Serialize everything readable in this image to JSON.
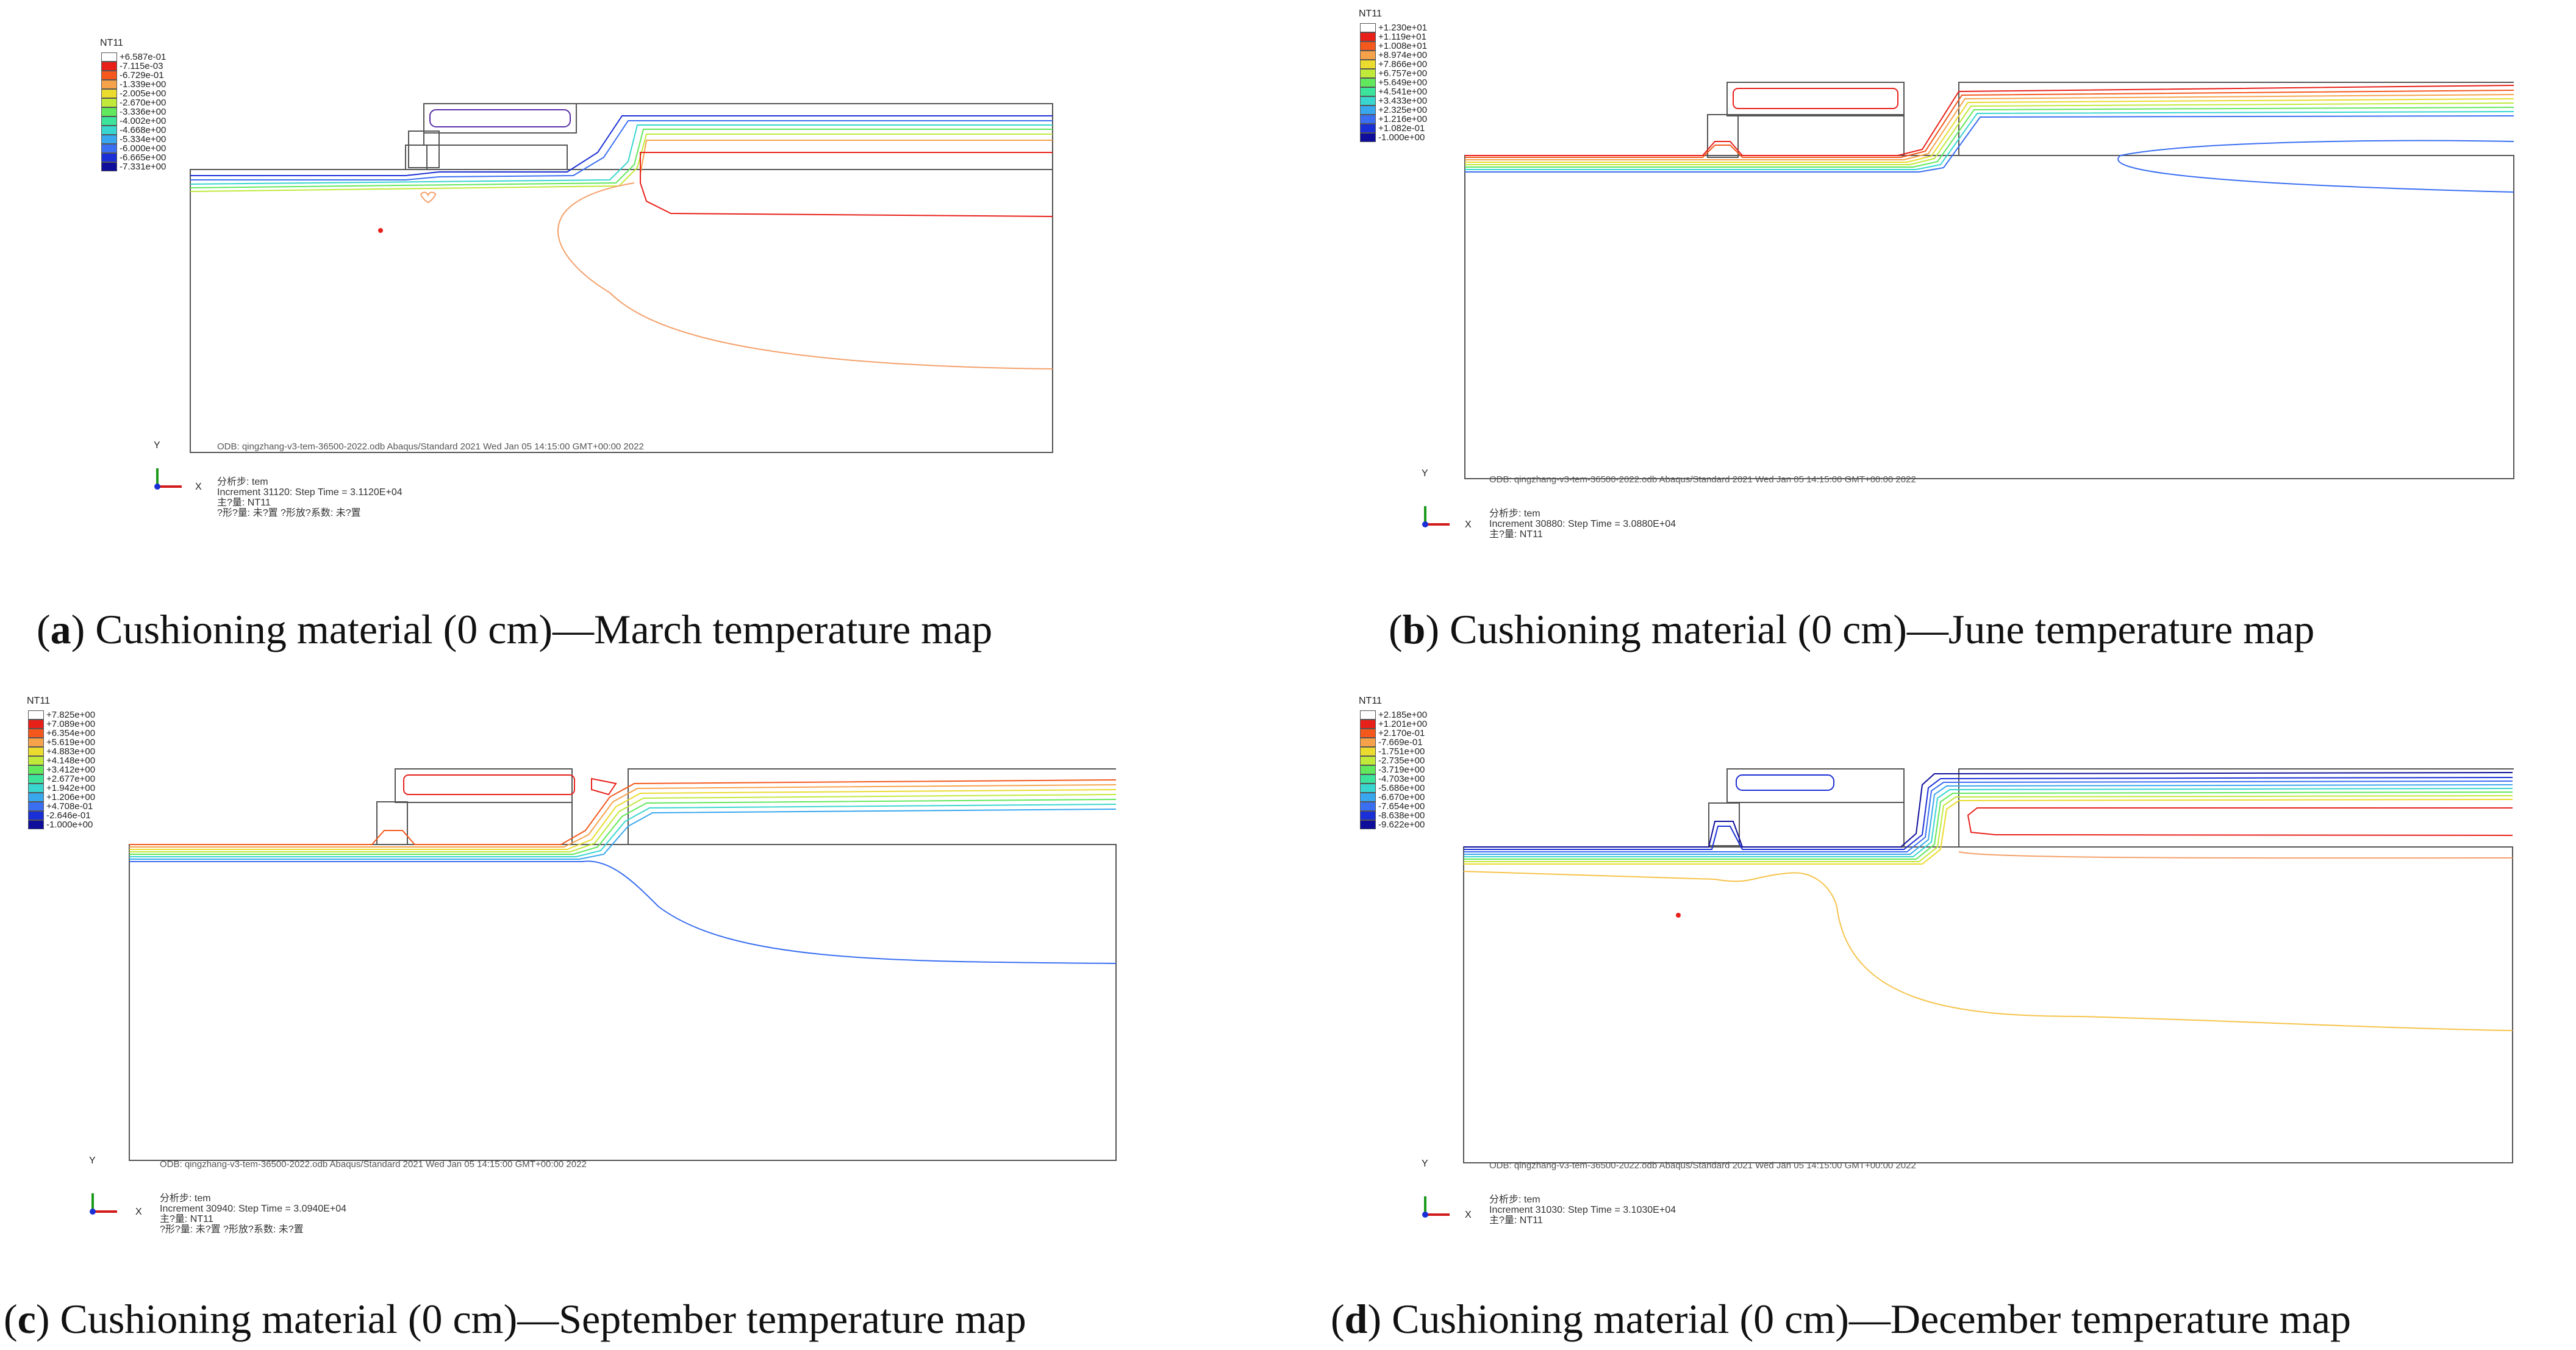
{
  "legend_colors": [
    "#ffffff",
    "#e8201a",
    "#f4581c",
    "#f6a24a",
    "#eadb2e",
    "#c0e93a",
    "#62e85c",
    "#3ce39b",
    "#38d6cf",
    "#38a7ee",
    "#3a6ff2",
    "#1a2fd6",
    "#0e0e9a"
  ],
  "panels": [
    {
      "variable": "NT11",
      "legend": [
        "+6.587e-01",
        "-7.115e-03",
        "-6.729e-01",
        "-1.339e+00",
        "-2.005e+00",
        "-2.670e+00",
        "-3.336e+00",
        "-4.002e+00",
        "-4.668e+00",
        "-5.334e+00",
        "-6.000e+00",
        "-6.665e+00",
        "-7.331e+00"
      ],
      "odb": "ODB: qingzhang-v3-tem-36500-2022.odb    Abaqus/Standard 2021    Wed Jan 05 14:15:00 GMT+00:00 2022",
      "info": [
        "分析步: tem",
        "Increment  31120: Step Time =   3.1120E+04",
        "主?量: NT11",
        "?形?量: 未?置   ?形放?系数: 未?置"
      ],
      "axis_x": "X",
      "axis_y": "Y",
      "caption_letter": "a",
      "caption_text": ") Cushioning material (0 cm)—March temperature map"
    },
    {
      "variable": "NT11",
      "legend": [
        "+1.230e+01",
        "+1.119e+01",
        "+1.008e+01",
        "+8.974e+00",
        "+7.866e+00",
        "+6.757e+00",
        "+5.649e+00",
        "+4.541e+00",
        "+3.433e+00",
        "+2.325e+00",
        "+1.216e+00",
        "+1.082e-01",
        "-1.000e+00"
      ],
      "odb": "ODB: qingzhang-v3-tem-36500-2022.odb    Abaqus/Standard 2021    Wed Jan 05 14:15:00 GMT+00:00 2022",
      "info": [
        "分析步: tem",
        "Increment  30880: Step Time =   3.0880E+04",
        "主?量: NT11"
      ],
      "axis_x": "X",
      "axis_y": "Y",
      "caption_letter": "b",
      "caption_text": ") Cushioning material (0 cm)—June temperature map"
    },
    {
      "variable": "NT11",
      "legend": [
        "+7.825e+00",
        "+7.089e+00",
        "+6.354e+00",
        "+5.619e+00",
        "+4.883e+00",
        "+4.148e+00",
        "+3.412e+00",
        "+2.677e+00",
        "+1.942e+00",
        "+1.206e+00",
        "+4.708e-01",
        "-2.646e-01",
        "-1.000e+00"
      ],
      "odb": "ODB: qingzhang-v3-tem-36500-2022.odb    Abaqus/Standard 2021    Wed Jan 05 14:15:00 GMT+00:00 2022",
      "info": [
        "分析步: tem",
        "Increment  30940: Step Time =   3.0940E+04",
        "主?量: NT11",
        "?形?量: 未?置   ?形放?系数: 未?置"
      ],
      "axis_x": "X",
      "axis_y": "Y",
      "caption_letter": "c",
      "caption_text": ") Cushioning material (0 cm)—September temperature map"
    },
    {
      "variable": "NT11",
      "legend": [
        "+2.185e+00",
        "+1.201e+00",
        "+2.170e-01",
        "-7.669e-01",
        "-1.751e+00",
        "-2.735e+00",
        "-3.719e+00",
        "-4.703e+00",
        "-5.686e+00",
        "-6.670e+00",
        "-7.654e+00",
        "-8.638e+00",
        "-9.622e+00"
      ],
      "odb": "ODB: qingzhang-v3-tem-36500-2022.odb    Abaqus/Standard 2021    Wed Jan 05 14:15:00 GMT+00:00 2022",
      "info": [
        "分析步: tem",
        "Increment  31030: Step Time =   3.1030E+04",
        "主?量: NT11"
      ],
      "axis_x": "X",
      "axis_y": "Y",
      "caption_letter": "d",
      "caption_text": ") Cushioning material (0 cm)—December temperature map"
    }
  ]
}
